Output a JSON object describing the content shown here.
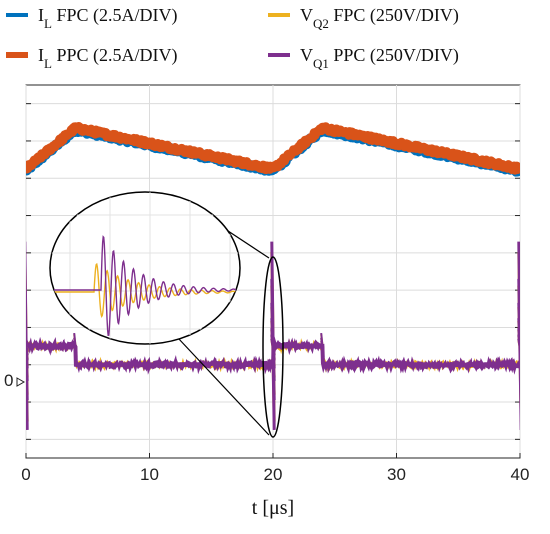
{
  "chart_data": {
    "type": "line",
    "xlabel": "t [μs]",
    "xlim": [
      0,
      40
    ],
    "x_ticks": [
      "0",
      "10",
      "20",
      "30",
      "40"
    ],
    "y_ticks": [
      "0"
    ],
    "y_units": "divisions",
    "ylim": [
      -2.5,
      7.5
    ],
    "grid": true,
    "legend_position": "top",
    "legend": [
      {
        "main": "I",
        "sub": "L",
        "rest": " FPC (2.5A/DIV)",
        "color": "#0072BD"
      },
      {
        "main": "V",
        "sub": "Q2",
        "rest": " FPC (250V/DIV)",
        "color": "#EDB120"
      },
      {
        "main": "I",
        "sub": "L",
        "rest": " PPC (2.5A/DIV)",
        "color": "#D95319"
      },
      {
        "main": "V",
        "sub": "Q1",
        "rest": " PPC (250V/DIV)",
        "color": "#7E2F8E"
      }
    ],
    "series": [
      {
        "name": "I_L FPC (2.5A/DIV)",
        "color": "#0072BD",
        "x": [
          0,
          4,
          20,
          24,
          40
        ],
        "y": [
          5.2,
          6.3,
          5.2,
          6.3,
          5.2
        ]
      },
      {
        "name": "I_L PPC (2.5A/DIV)",
        "color": "#D95319",
        "x": [
          0,
          4,
          20,
          24,
          40
        ],
        "y": [
          5.25,
          6.35,
          5.25,
          6.35,
          5.25
        ]
      },
      {
        "name": "V_Q2 FPC (250V/DIV)",
        "color": "#EDB120",
        "x": [
          0,
          4,
          4.01,
          20,
          20.01,
          24,
          24.01,
          40
        ],
        "y": [
          0.5,
          0.5,
          0,
          0,
          0.5,
          0.5,
          0,
          0
        ]
      },
      {
        "name": "V_Q1 PPC (250V/DIV)",
        "color": "#7E2F8E",
        "x": [
          0,
          4,
          4.01,
          20,
          20.01,
          24,
          24.01,
          40
        ],
        "y": [
          0.5,
          0.5,
          0,
          0,
          0.5,
          0.5,
          0,
          0
        ]
      }
    ],
    "zoom_inset": {
      "center_x": 20,
      "shows": "V_Q1 PPC and V_Q2 FPC switching ringing at t = 20 μs"
    }
  }
}
